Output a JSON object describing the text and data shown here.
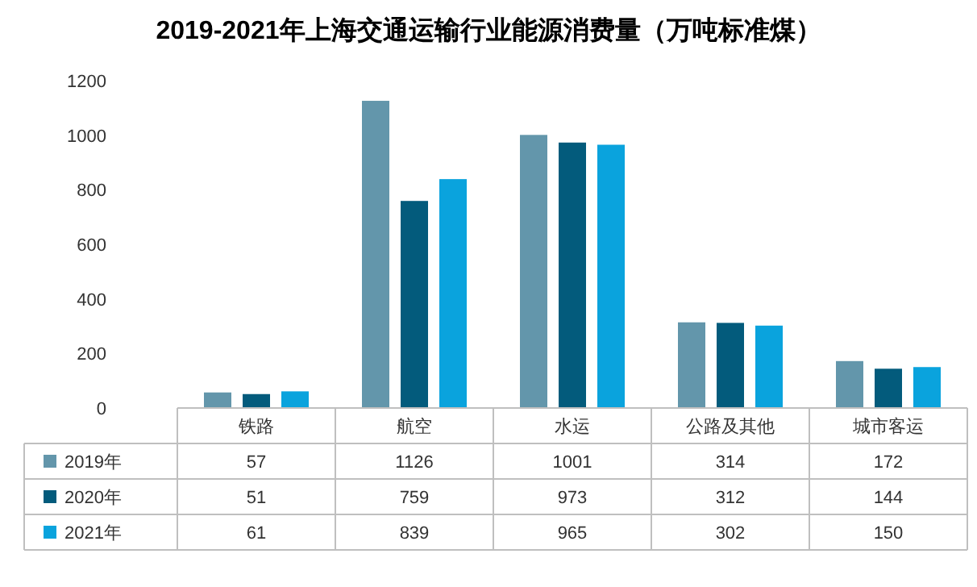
{
  "chart_data": {
    "type": "bar",
    "title": "2019-2021年上海交通运输行业能源消费量（万吨标准煤）",
    "categories": [
      "铁路",
      "航空",
      "水运",
      "公路及其他",
      "城市客运"
    ],
    "series": [
      {
        "name": "2019年",
        "color": "#6396ab",
        "values": [
          57,
          1126,
          1001,
          314,
          172
        ]
      },
      {
        "name": "2020年",
        "color": "#035b7c",
        "values": [
          51,
          759,
          973,
          312,
          144
        ]
      },
      {
        "name": "2021年",
        "color": "#0aa3dd",
        "values": [
          61,
          839,
          965,
          302,
          150
        ]
      }
    ],
    "ylim": [
      0,
      1200
    ],
    "yticks": [
      0,
      200,
      400,
      600,
      800,
      1000,
      1200
    ],
    "data_labels": true,
    "legend": "bottom"
  }
}
